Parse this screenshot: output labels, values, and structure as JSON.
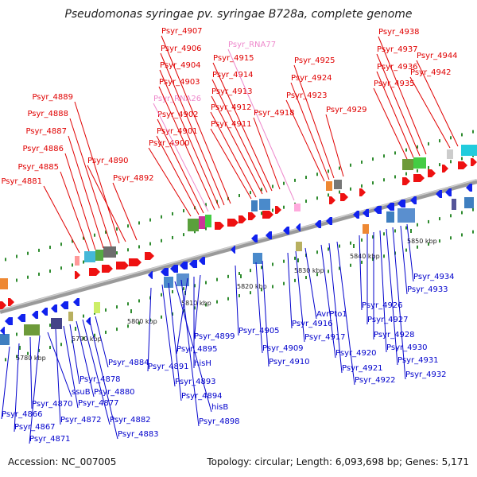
{
  "title": "Pseudomonas syringae pv. syringae B728a, complete genome",
  "footer": {
    "accession": "Accession: NC_007005",
    "summary": "Topology: circular; Length: 6,093,698 bp; Genes: 5,171"
  },
  "colors": {
    "forward_label": "#e00000",
    "reverse_label": "#0000cc",
    "rna_label": "#ee88cc",
    "backbone": "#9a9a9a",
    "tick": "#2e8b2e"
  },
  "kbp_labels": [
    "5780 kbp",
    "5790 kbp",
    "5800 kbp",
    "5810 kbp",
    "5820 kbp",
    "5830 kbp",
    "5840 kbp",
    "5850 kbp"
  ],
  "forward_genes": [
    "Psyr_4881",
    "Psyr_4885",
    "Psyr_4886",
    "Psyr_4887",
    "Psyr_4888",
    "Psyr_4889",
    "Psyr_4890",
    "Psyr_4892",
    "Psyr_4900",
    "Psyr_4901",
    "Psyr_4902",
    "Psyr_RNA26",
    "Psyr_4903",
    "Psyr_4904",
    "Psyr_4906",
    "Psyr_4907",
    "Psyr_4911",
    "Psyr_4912",
    "Psyr_4913",
    "Psyr_4914",
    "Psyr_4915",
    "Psyr_RNA77",
    "Psyr_4918",
    "Psyr_4923",
    "Psyr_4924",
    "Psyr_4925",
    "Psyr_4929",
    "Psyr_4935",
    "Psyr_4936",
    "Psyr_4937",
    "Psyr_4938",
    "Psyr_4942",
    "Psyr_4944"
  ],
  "reverse_genes": [
    "Psyr_4866",
    "Psyr_4867",
    "Psyr_4870",
    "Psyr_4871",
    "ssuB",
    "Psyr_4872",
    "Psyr_4877",
    "Psyr_4878",
    "Psyr_4880",
    "Psyr_4882",
    "Psyr_4883",
    "Psyr_4884",
    "Psyr_4891",
    "Psyr_4893",
    "Psyr_4894",
    "hisB",
    "Psyr_4898",
    "Psyr_4895",
    "hisH",
    "Psyr_4899",
    "Psyr_4905",
    "Psyr_4909",
    "Psyr_4910",
    "Psyr_4916",
    "Psyr_4917",
    "AvrPto1",
    "Psyr_4920",
    "Psyr_4921",
    "Psyr_4922",
    "Psyr_4926",
    "Psyr_4927",
    "Psyr_4928",
    "Psyr_4930",
    "Psyr_4931",
    "Psyr_4932",
    "Psyr_4933",
    "Psyr_4934"
  ]
}
